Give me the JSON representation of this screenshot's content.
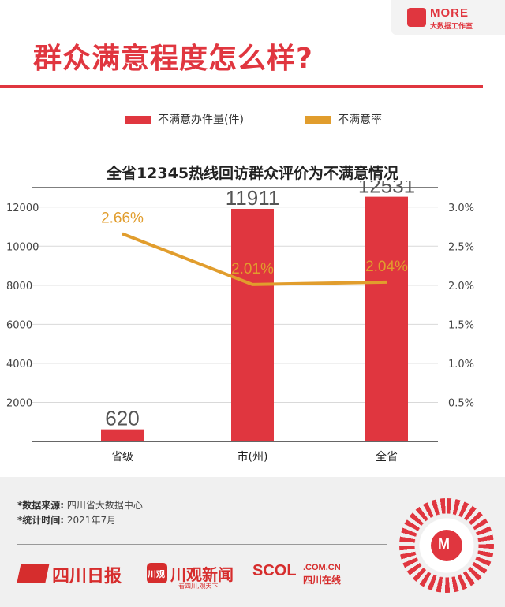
{
  "brand": {
    "name": "MORE",
    "sub": "大数据工作室"
  },
  "page_title": "群众满意程度怎么样?",
  "footer": {
    "source_label": "*数据来源:",
    "source_value": "四川省大数据中心",
    "time_label": "*统计时间:",
    "time_value": "2021年7月",
    "logos": {
      "sichuan_daily": "四川日报",
      "chuanguan_icon": "川观",
      "chuanguan": "川观新闻",
      "chuanguan_sub": "看四川,观天下",
      "scol": "SCOL",
      "scol_domain": ".COM.CN",
      "scol_sub": "四川在线"
    }
  },
  "colors": {
    "bar": "#e0363f",
    "line": "#e19d2d",
    "title": "#e0363f"
  },
  "chart_data": {
    "type": "bar",
    "title": "全省12345热线回访群众评价为不满意情况",
    "categories": [
      "省级",
      "市(州)",
      "全省"
    ],
    "series": [
      {
        "name": "不满意办件量(件)",
        "type": "bar",
        "axis": "left",
        "values": [
          620,
          11911,
          12531
        ],
        "value_labels": [
          "620",
          "11911",
          "12531"
        ]
      },
      {
        "name": "不满意率",
        "type": "line",
        "axis": "right",
        "values": [
          2.66,
          2.01,
          2.04
        ],
        "value_labels": [
          "2.66%",
          "2.01%",
          "2.04%"
        ]
      }
    ],
    "y_left": {
      "ylim": [
        0,
        13000
      ],
      "ticks": [
        2000,
        4000,
        6000,
        8000,
        10000,
        12000
      ],
      "tick_labels": [
        "2000",
        "4000",
        "6000",
        "8000",
        "10000",
        "12000"
      ]
    },
    "y_right": {
      "ylim": [
        0,
        3.25
      ],
      "ticks": [
        0.5,
        1.0,
        1.5,
        2.0,
        2.5,
        3.0
      ],
      "tick_labels": [
        "0.5%",
        "1.0%",
        "1.5%",
        "2.0%",
        "2.5%",
        "3.0%"
      ]
    },
    "grid": true,
    "legend_position": "top"
  }
}
